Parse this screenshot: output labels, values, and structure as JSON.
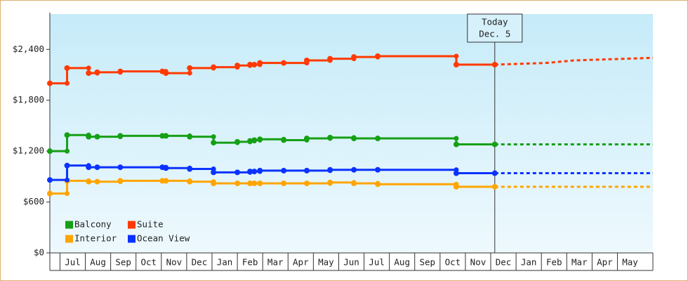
{
  "chart_data": {
    "type": "step-line",
    "categories": [
      "Jul",
      "Aug",
      "Sep",
      "Oct",
      "Nov",
      "Dec",
      "Jan",
      "Feb",
      "Mar",
      "Apr",
      "May",
      "Jun",
      "Jul",
      "Aug",
      "Sep",
      "Oct",
      "Nov",
      "Dec",
      "Jan",
      "Feb",
      "Mar",
      "Apr",
      "May"
    ],
    "xlim": [
      -0.4,
      23.4
    ],
    "ylim": [
      0,
      2800
    ],
    "yticks": [
      {
        "value": 0,
        "label": "$0"
      },
      {
        "value": 600,
        "label": "$600"
      },
      {
        "value": 1200,
        "label": "$1,200"
      },
      {
        "value": 1800,
        "label": "$1,800"
      },
      {
        "value": 2400,
        "label": "$2,400"
      }
    ],
    "today": {
      "label": [
        "Today",
        "Dec. 5"
      ],
      "x": 17.16
    },
    "x": [
      -0.4,
      0.28,
      1.13,
      1.47,
      2.38,
      4.04,
      4.18,
      5.12,
      6.06,
      7.0,
      7.5,
      7.67,
      7.89,
      8.83,
      9.74,
      10.66,
      11.6,
      12.54,
      15.64,
      17.16
    ],
    "series": [
      {
        "name": "Balcony",
        "color": "#15a015",
        "values": [
          1200,
          1390,
          1370,
          1370,
          1380,
          1380,
          1380,
          1370,
          1300,
          1310,
          1320,
          1330,
          1340,
          1330,
          1350,
          1360,
          1350,
          1350,
          1280,
          1280
        ],
        "projection": {
          "x": [
            17.16,
            23.4
          ],
          "values": [
            1280,
            1280
          ]
        }
      },
      {
        "name": "Suite",
        "color": "#ff3a00",
        "values": [
          2000,
          2180,
          2120,
          2130,
          2140,
          2140,
          2120,
          2180,
          2190,
          2210,
          2220,
          2220,
          2240,
          2240,
          2270,
          2290,
          2310,
          2320,
          2220,
          2220
        ],
        "projection": {
          "x": [
            17.16,
            19.2,
            20.3,
            23.4
          ],
          "values": [
            2220,
            2240,
            2270,
            2300
          ]
        }
      },
      {
        "name": "Interior",
        "color": "#ffa500",
        "values": [
          700,
          850,
          840,
          840,
          850,
          850,
          850,
          840,
          820,
          820,
          820,
          820,
          820,
          820,
          820,
          830,
          820,
          810,
          780,
          780
        ],
        "projection": {
          "x": [
            17.16,
            23.4
          ],
          "values": [
            780,
            780
          ]
        }
      },
      {
        "name": "Ocean View",
        "color": "#0a32ff",
        "values": [
          860,
          1030,
          1010,
          1010,
          1010,
          1010,
          1000,
          990,
          950,
          950,
          960,
          960,
          970,
          970,
          970,
          980,
          980,
          980,
          940,
          940
        ],
        "projection": {
          "x": [
            17.16,
            23.4
          ],
          "values": [
            940,
            940
          ]
        }
      }
    ]
  }
}
